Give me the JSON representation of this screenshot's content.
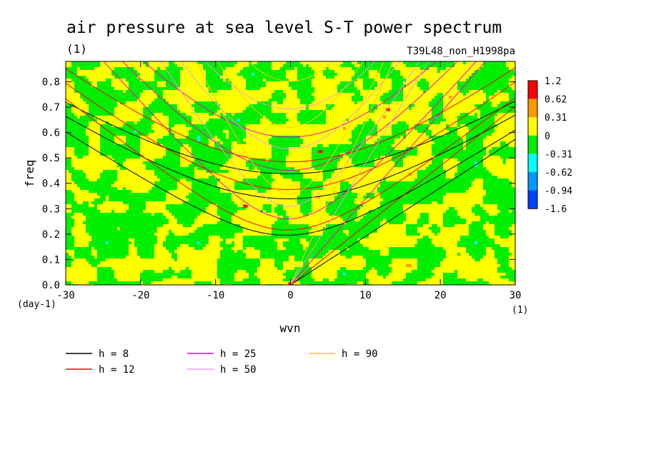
{
  "chart_data": {
    "type": "heatmap",
    "title": "air pressure at sea level S-T power spectrum",
    "subtitle_left": "(1)",
    "subtitle_right": "T39L48_non_H1998pa",
    "xlabel": "wvn",
    "ylabel": "freq",
    "x_unit": "(1)",
    "y_unit": "(day-1)",
    "xlim": [
      -30,
      30
    ],
    "ylim": [
      0.0,
      0.88
    ],
    "xticks": [
      -30,
      -20,
      -10,
      0,
      10,
      20,
      30
    ],
    "xtick_labels": [
      "-30",
      "-20",
      "-10",
      "0",
      "10",
      "20",
      "30"
    ],
    "yticks": [
      0.0,
      0.1,
      0.2,
      0.3,
      0.4,
      0.5,
      0.6,
      0.7,
      0.8
    ],
    "ytick_labels": [
      "0.0",
      "0.1",
      "0.2",
      "0.3",
      "0.4",
      "0.5",
      "0.6",
      "0.7",
      "0.8"
    ],
    "colorbar": {
      "levels": [
        "1.2",
        "0.62",
        "0.31",
        "0",
        "-0.31",
        "-0.62",
        "-0.94",
        "-1.6"
      ],
      "colors": [
        "#ff0000",
        "#ff9900",
        "#ffff00",
        "#00ee00",
        "#00ffff",
        "#0099ff",
        "#0040ff"
      ]
    },
    "field_description": "noisy speckled contours, mostly yellow and green with small cyan, orange and red patches",
    "series": [
      {
        "name": "h = 8",
        "h": 8,
        "color": "#000000"
      },
      {
        "name": "h = 12",
        "h": 12,
        "color": "#ff0000"
      },
      {
        "name": "h = 25",
        "h": 25,
        "color": "#ff00cc"
      },
      {
        "name": "h = 50",
        "h": 50,
        "color": "#ee99ee"
      },
      {
        "name": "h = 90",
        "h": 90,
        "color": "#ffcc00"
      }
    ],
    "legend_labels": [
      "h =  8",
      "h = 12",
      "h = 25",
      "h = 50",
      "h = 90"
    ]
  }
}
